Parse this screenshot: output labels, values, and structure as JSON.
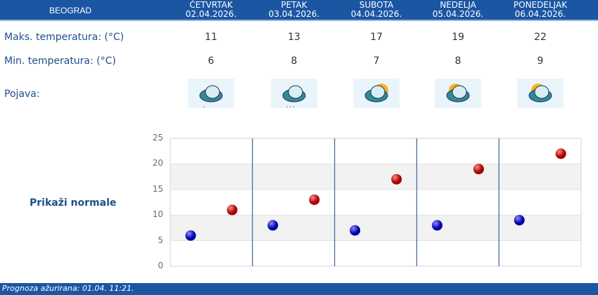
{
  "header": {
    "city": "BEOGRAD",
    "days": [
      {
        "name": "ČETVRTAK",
        "date": "02.04.2026.",
        "max": "11",
        "min": "6",
        "icon": "cloud-light-rain-icon"
      },
      {
        "name": "PETAK",
        "date": "03.04.2026.",
        "max": "13",
        "min": "8",
        "icon": "cloud-rain-icon"
      },
      {
        "name": "SUBOTA",
        "date": "04.04.2026.",
        "max": "17",
        "min": "7",
        "icon": "cloud-sun-icon"
      },
      {
        "name": "NEDELJA",
        "date": "05.04.2026.",
        "max": "19",
        "min": "8",
        "icon": "sun-cloud-icon"
      },
      {
        "name": "PONEDELJAK",
        "date": "06.04.2026.",
        "max": "22",
        "min": "9",
        "icon": "sun-cloud-icon"
      }
    ]
  },
  "rows": {
    "max_label": "Maks. temperatura: (°C)",
    "min_label": "Min. temperatura: (°C)",
    "phenomenon_label": "Pojava:"
  },
  "show_normals": "Prikaži normale",
  "footer": "Prognoza ažurirana:  01.04. 11:21.",
  "chart_data": {
    "type": "scatter",
    "categories": [
      "02.04.2026.",
      "03.04.2026.",
      "04.04.2026.",
      "05.04.2026.",
      "06.04.2026."
    ],
    "series": [
      {
        "values": [
          6,
          8,
          7,
          8,
          9
        ],
        "color": "#0a0ab4"
      },
      {
        "values": [
          11,
          13,
          17,
          19,
          22
        ],
        "color": "#c40a0a"
      }
    ],
    "yticks": [
      "0",
      "5",
      "10",
      "15",
      "20",
      "25"
    ],
    "ylim": [
      0,
      25
    ],
    "grid": true
  }
}
